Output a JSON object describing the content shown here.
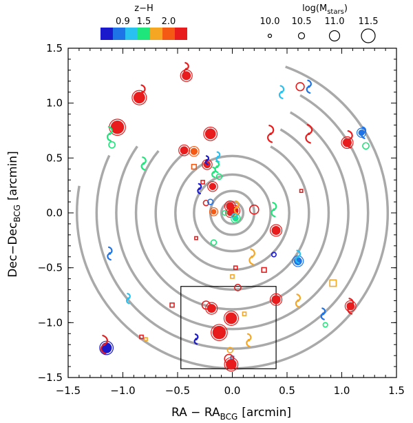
{
  "chart_data": {
    "type": "scatter",
    "title": "",
    "xlabel": "RA − RA",
    "xlabel_sub": "BCG",
    "xlabel_unit": "[arcmin]",
    "ylabel": "Dec−Dec",
    "ylabel_sub": "BCG",
    "ylabel_unit": "[arcmin]",
    "xlim": [
      -1.5,
      1.5
    ],
    "ylim": [
      -1.5,
      1.5
    ],
    "xticks": [
      "−1.5",
      "−1.0",
      "−0.5",
      "0.0",
      "0.5",
      "1.0",
      "1.5"
    ],
    "yticks": [
      "−1.5",
      "−1.0",
      "−0.5",
      "0.0",
      "0.5",
      "1.0",
      "1.5"
    ],
    "color_legend": {
      "title": "z−H",
      "tick_labels": [
        "0.9",
        "1.5",
        "2.0"
      ],
      "bins": [
        "#1a1acc",
        "#1e73e6",
        "#28c1f0",
        "#1ee67a",
        "#f5a623",
        "#f55a14",
        "#e81c1c"
      ]
    },
    "size_legend": {
      "title": "log(M",
      "title_sub": "stars",
      "title_end": ")",
      "values": [
        "10.0",
        "10.5",
        "11.0",
        "11.5"
      ]
    },
    "rings": [
      {
        "radius": 0.1,
        "start": 0,
        "end": 360
      },
      {
        "radius": 0.2,
        "start": 0,
        "end": 360
      },
      {
        "radius": 0.35,
        "start": 0,
        "end": 360
      },
      {
        "radius": 0.52,
        "start": 0,
        "end": 360
      },
      {
        "radius": 0.7,
        "start": 300,
        "end": 590
      },
      {
        "radius": 0.88,
        "start": 300,
        "end": 580
      },
      {
        "radius": 1.06,
        "start": 300,
        "end": 575
      },
      {
        "radius": 1.24,
        "start": 300,
        "end": 565
      },
      {
        "radius": 1.42,
        "start": 290,
        "end": 550
      }
    ],
    "inset_box": {
      "x0": -0.47,
      "x1": 0.4,
      "y0": -1.42,
      "y1": -0.67
    },
    "points": [
      {
        "x": -0.42,
        "y": 1.25,
        "kind": "filled",
        "color": "#e81c1c",
        "size": 1.0
      },
      {
        "x": -0.42,
        "y": 1.31,
        "kind": "spiral",
        "color": "#e81c1c",
        "size": 0.9
      },
      {
        "x": -0.85,
        "y": 1.05,
        "kind": "filled",
        "color": "#e81c1c",
        "size": 1.3
      },
      {
        "x": -0.82,
        "y": 1.1,
        "kind": "spiral",
        "color": "#e81c1c",
        "size": 1.0
      },
      {
        "x": -1.05,
        "y": 0.78,
        "kind": "filled",
        "color": "#e81c1c",
        "size": 1.5
      },
      {
        "x": -1.1,
        "y": 0.62,
        "kind": "open",
        "color": "#1ee67a",
        "size": 0.7
      },
      {
        "x": -1.12,
        "y": 0.72,
        "kind": "spiral",
        "color": "#1ee67a",
        "size": 1.0
      },
      {
        "x": -0.81,
        "y": 0.45,
        "kind": "spiral",
        "color": "#1ee67a",
        "size": 0.9
      },
      {
        "x": -0.2,
        "y": 0.72,
        "kind": "filled",
        "color": "#e81c1c",
        "size": 1.2
      },
      {
        "x": -0.35,
        "y": 0.56,
        "kind": "filled",
        "color": "#f55a14",
        "size": 0.8
      },
      {
        "x": -0.44,
        "y": 0.57,
        "kind": "filled",
        "color": "#e81c1c",
        "size": 0.9
      },
      {
        "x": -0.23,
        "y": 0.44,
        "kind": "filled",
        "color": "#e81c1c",
        "size": 0.8
      },
      {
        "x": -0.23,
        "y": 0.48,
        "kind": "spiral",
        "color": "#1a1acc",
        "size": 0.6
      },
      {
        "x": -0.35,
        "y": 0.42,
        "kind": "square",
        "color": "#f55a14",
        "size": 0.8
      },
      {
        "x": -0.27,
        "y": 0.28,
        "kind": "square",
        "color": "#e81c1c",
        "size": 0.6
      },
      {
        "x": -0.18,
        "y": 0.24,
        "kind": "filled",
        "color": "#e81c1c",
        "size": 0.8
      },
      {
        "x": -0.14,
        "y": 0.42,
        "kind": "spiral",
        "color": "#1ee67a",
        "size": 0.8
      },
      {
        "x": -0.13,
        "y": 0.51,
        "kind": "spiral",
        "color": "#28c1f0",
        "size": 0.7
      },
      {
        "x": -0.12,
        "y": 0.33,
        "kind": "open",
        "color": "#1ee67a",
        "size": 0.6
      },
      {
        "x": -0.3,
        "y": 0.22,
        "kind": "spiral",
        "color": "#1a1acc",
        "size": 0.7
      },
      {
        "x": -0.24,
        "y": 0.09,
        "kind": "open",
        "color": "#e81c1c",
        "size": 0.6
      },
      {
        "x": -0.17,
        "y": 0.01,
        "kind": "filled",
        "color": "#f55a14",
        "size": 0.6
      },
      {
        "x": -0.2,
        "y": 0.1,
        "kind": "open",
        "color": "#1e73e6",
        "size": 0.6
      },
      {
        "x": -0.02,
        "y": 0.06,
        "kind": "filled",
        "color": "#e81c1c",
        "size": 0.9
      },
      {
        "x": 0.02,
        "y": 0.02,
        "kind": "filled",
        "color": "#e81c1c",
        "size": 0.9
      },
      {
        "x": -0.02,
        "y": 0.0,
        "kind": "filled",
        "color": "#e81c1c",
        "size": 0.7
      },
      {
        "x": 0.03,
        "y": -0.05,
        "kind": "filled",
        "color": "#1ee67a",
        "size": 0.7
      },
      {
        "x": 0.02,
        "y": -0.03,
        "kind": "open",
        "color": "#28c1f0",
        "size": 0.6
      },
      {
        "x": 0.04,
        "y": 0.05,
        "kind": "spiral",
        "color": "#f5a623",
        "size": 0.9
      },
      {
        "x": -0.07,
        "y": 0.0,
        "kind": "open",
        "color": "#1ee67a",
        "size": 0.5
      },
      {
        "x": 0.2,
        "y": 0.03,
        "kind": "open",
        "color": "#e81c1c",
        "size": 1.0
      },
      {
        "x": 0.38,
        "y": 0.03,
        "kind": "spiral",
        "color": "#1ee67a",
        "size": 1.0
      },
      {
        "x": 0.4,
        "y": -0.16,
        "kind": "filled",
        "color": "#e81c1c",
        "size": 1.0
      },
      {
        "x": -0.33,
        "y": -0.23,
        "kind": "square",
        "color": "#e81c1c",
        "size": 0.5
      },
      {
        "x": -0.17,
        "y": -0.27,
        "kind": "open",
        "color": "#1ee67a",
        "size": 0.6
      },
      {
        "x": 0.18,
        "y": -0.4,
        "kind": "spiral",
        "color": "#f5a623",
        "size": 1.1
      },
      {
        "x": 0.38,
        "y": -0.38,
        "kind": "open",
        "color": "#1a1acc",
        "size": 0.5
      },
      {
        "x": 0.03,
        "y": -0.5,
        "kind": "square",
        "color": "#e81c1c",
        "size": 0.6
      },
      {
        "x": 0.29,
        "y": -0.52,
        "kind": "square",
        "color": "#e81c1c",
        "size": 0.8
      },
      {
        "x": 0.0,
        "y": -0.58,
        "kind": "square",
        "color": "#f5a623",
        "size": 0.6
      },
      {
        "x": 0.05,
        "y": -0.68,
        "kind": "open",
        "color": "#e81c1c",
        "size": 0.7
      },
      {
        "x": 0.6,
        "y": -0.44,
        "kind": "filled",
        "color": "#1e73e6",
        "size": 0.9
      },
      {
        "x": 0.6,
        "y": -0.4,
        "kind": "spiral",
        "color": "#28c1f0",
        "size": 0.9
      },
      {
        "x": 0.4,
        "y": -0.79,
        "kind": "filled",
        "color": "#e81c1c",
        "size": 1.0
      },
      {
        "x": 0.6,
        "y": -0.8,
        "kind": "spiral",
        "color": "#f5a623",
        "size": 0.9
      },
      {
        "x": 0.92,
        "y": -0.64,
        "kind": "square",
        "color": "#f5a623",
        "size": 1.1
      },
      {
        "x": 1.08,
        "y": -0.85,
        "kind": "filled",
        "color": "#e81c1c",
        "size": 0.9
      },
      {
        "x": 1.08,
        "y": -0.85,
        "kind": "spiral",
        "color": "#e81c1c",
        "size": 1.1
      },
      {
        "x": 0.83,
        "y": -0.92,
        "kind": "spiral",
        "color": "#1e73e6",
        "size": 0.8
      },
      {
        "x": 0.85,
        "y": -1.02,
        "kind": "open",
        "color": "#1ee67a",
        "size": 0.5
      },
      {
        "x": -0.55,
        "y": -0.84,
        "kind": "square",
        "color": "#e81c1c",
        "size": 0.7
      },
      {
        "x": -1.12,
        "y": -0.37,
        "kind": "spiral",
        "color": "#1e73e6",
        "size": 0.9
      },
      {
        "x": -0.95,
        "y": -0.78,
        "kind": "spiral",
        "color": "#28c1f0",
        "size": 0.7
      },
      {
        "x": -0.83,
        "y": -1.13,
        "kind": "square",
        "color": "#e81c1c",
        "size": 0.6
      },
      {
        "x": -0.79,
        "y": -1.15,
        "kind": "square",
        "color": "#f5a623",
        "size": 0.5
      },
      {
        "x": -1.15,
        "y": -1.23,
        "kind": "filled",
        "color": "#1a1acc",
        "size": 1.2
      },
      {
        "x": -1.17,
        "y": -1.2,
        "kind": "spiral",
        "color": "#e81c1c",
        "size": 1.3
      },
      {
        "x": -0.24,
        "y": -0.84,
        "kind": "open",
        "color": "#e81c1c",
        "size": 0.9
      },
      {
        "x": -0.19,
        "y": -0.87,
        "kind": "filled",
        "color": "#e81c1c",
        "size": 1.0
      },
      {
        "x": -0.01,
        "y": -0.96,
        "kind": "filled",
        "color": "#e81c1c",
        "size": 1.3
      },
      {
        "x": 0.11,
        "y": -0.92,
        "kind": "square",
        "color": "#f5a623",
        "size": 0.6
      },
      {
        "x": -0.12,
        "y": -1.09,
        "kind": "filled",
        "color": "#e81c1c",
        "size": 1.5
      },
      {
        "x": -0.33,
        "y": -1.15,
        "kind": "spiral",
        "color": "#1a1acc",
        "size": 0.7
      },
      {
        "x": 0.15,
        "y": -1.16,
        "kind": "spiral",
        "color": "#f5a623",
        "size": 0.9
      },
      {
        "x": -0.02,
        "y": -1.25,
        "kind": "open",
        "color": "#f5a623",
        "size": 0.6
      },
      {
        "x": 0.0,
        "y": -1.32,
        "kind": "square",
        "color": "#1e73e6",
        "size": 0.5
      },
      {
        "x": -0.03,
        "y": -1.33,
        "kind": "open",
        "color": "#e81c1c",
        "size": 1.0
      },
      {
        "x": -0.01,
        "y": -1.38,
        "kind": "filled",
        "color": "#e81c1c",
        "size": 1.2
      },
      {
        "x": 0.62,
        "y": 1.15,
        "kind": "open",
        "color": "#e81c1c",
        "size": 0.9
      },
      {
        "x": 0.45,
        "y": 1.1,
        "kind": "spiral",
        "color": "#28c1f0",
        "size": 0.9
      },
      {
        "x": 0.7,
        "y": 1.15,
        "kind": "spiral",
        "color": "#1e73e6",
        "size": 0.9
      },
      {
        "x": 0.35,
        "y": 0.72,
        "kind": "spiral",
        "color": "#e81c1c",
        "size": 1.2
      },
      {
        "x": 0.7,
        "y": 0.72,
        "kind": "spiral",
        "color": "#e81c1c",
        "size": 1.3
      },
      {
        "x": 1.05,
        "y": 0.64,
        "kind": "filled",
        "color": "#e81c1c",
        "size": 1.0
      },
      {
        "x": 1.07,
        "y": 0.67,
        "kind": "spiral",
        "color": "#e81c1c",
        "size": 1.2
      },
      {
        "x": 1.18,
        "y": 0.73,
        "kind": "filled",
        "color": "#1e73e6",
        "size": 0.7
      },
      {
        "x": 1.2,
        "y": 0.73,
        "kind": "spiral",
        "color": "#1e73e6",
        "size": 0.8
      },
      {
        "x": 1.22,
        "y": 0.61,
        "kind": "open",
        "color": "#1ee67a",
        "size": 0.7
      },
      {
        "x": 0.63,
        "y": 0.2,
        "kind": "square",
        "color": "#e81c1c",
        "size": 0.5
      },
      {
        "x": -0.17,
        "y": 0.37,
        "kind": "spiral",
        "color": "#1ee67a",
        "size": 0.7
      }
    ]
  }
}
